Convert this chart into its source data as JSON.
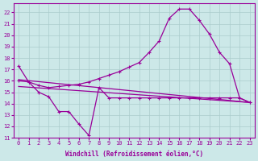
{
  "xlabel": "Windchill (Refroidissement éolien,°C)",
  "ylabel": "",
  "bg_color": "#cce8e8",
  "grid_color": "#aacccc",
  "line_color": "#990099",
  "xlim": [
    -0.5,
    23.5
  ],
  "ylim": [
    11,
    22.8
  ],
  "xticks": [
    0,
    1,
    2,
    3,
    4,
    5,
    6,
    7,
    8,
    9,
    10,
    11,
    12,
    13,
    14,
    15,
    16,
    17,
    18,
    19,
    20,
    21,
    22,
    23
  ],
  "yticks": [
    11,
    12,
    13,
    14,
    15,
    16,
    17,
    18,
    19,
    20,
    21,
    22
  ],
  "line1_x": [
    0,
    1,
    2,
    3,
    4,
    5,
    6,
    7,
    8,
    9,
    10,
    11,
    12,
    13,
    14,
    15,
    16,
    17,
    18,
    19,
    20,
    21,
    22,
    23
  ],
  "line1_y": [
    17.3,
    15.9,
    15.0,
    14.6,
    13.3,
    13.3,
    12.2,
    11.2,
    15.4,
    14.5,
    14.5,
    14.5,
    14.5,
    14.5,
    14.5,
    14.5,
    14.5,
    14.5,
    14.5,
    14.5,
    14.5,
    14.5,
    14.5,
    14.1
  ],
  "line2_x": [
    0,
    23
  ],
  "line2_y": [
    15.5,
    14.1
  ],
  "line3_x": [
    0,
    23
  ],
  "line3_y": [
    16.1,
    14.1
  ],
  "line4_x": [
    0,
    1,
    2,
    3,
    4,
    5,
    6,
    7,
    8,
    9,
    10,
    11,
    12,
    13,
    14,
    15,
    16,
    17,
    18,
    19,
    20,
    21,
    22,
    23
  ],
  "line4_y": [
    16.0,
    15.9,
    15.6,
    15.4,
    15.5,
    15.6,
    15.7,
    15.9,
    16.2,
    16.5,
    16.8,
    17.2,
    17.6,
    18.5,
    19.5,
    21.5,
    22.3,
    22.3,
    21.3,
    20.1,
    18.5,
    17.5,
    14.5,
    14.1
  ],
  "marker": "+",
  "marker_size": 3,
  "line_width": 0.9
}
